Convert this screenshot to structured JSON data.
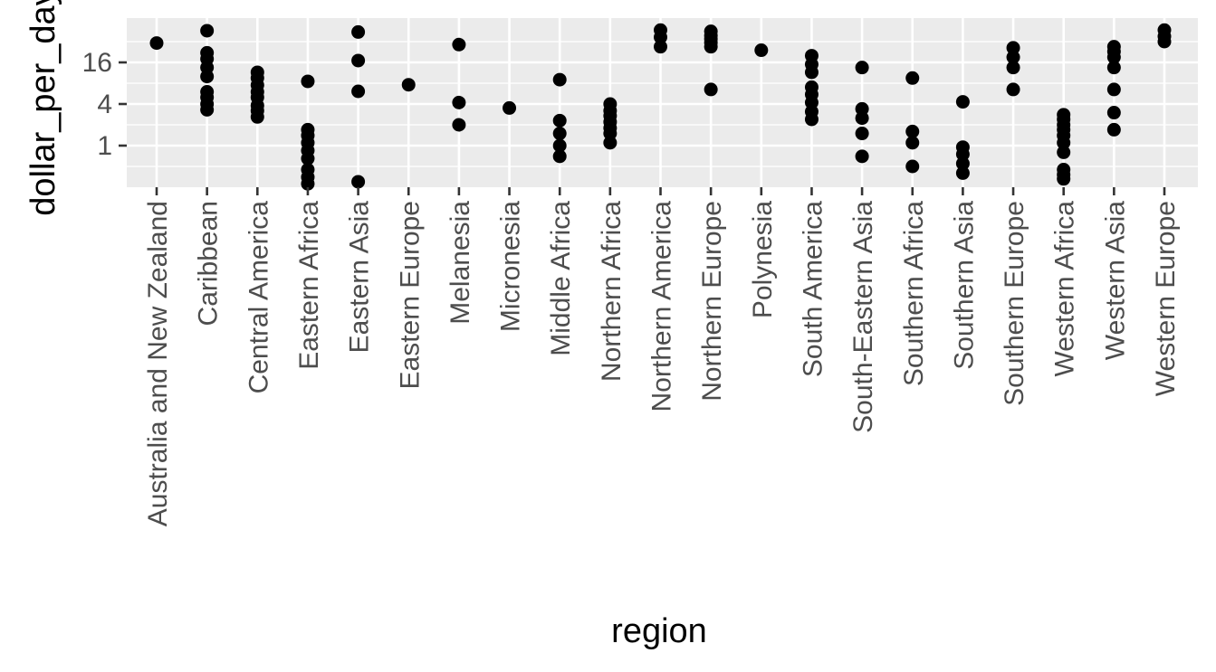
{
  "chart_data": {
    "type": "scatter",
    "xlabel": "region",
    "ylabel": "dollar_per_day",
    "y_scale": "log2",
    "y_ticks": [
      1,
      4,
      16
    ],
    "y_tick_labels": [
      "1",
      "4",
      "16"
    ],
    "ylim": [
      0.12,
      100
    ],
    "grid": true,
    "categories": [
      "Australia and New Zealand",
      "Caribbean",
      "Central America",
      "Eastern Africa",
      "Eastern Asia",
      "Eastern Europe",
      "Melanesia",
      "Micronesia",
      "Middle Africa",
      "Northern Africa",
      "Northern America",
      "Northern Europe",
      "Polynesia",
      "South America",
      "South-Eastern Asia",
      "Southern Africa",
      "Southern Asia",
      "Southern Europe",
      "Western Africa",
      "Western Asia",
      "Western Europe"
    ],
    "points": [
      {
        "category": "Australia and New Zealand",
        "values": [
          30.5
        ]
      },
      {
        "category": "Caribbean",
        "values": [
          46,
          22,
          18,
          13.5,
          10,
          6,
          5,
          4,
          3.3
        ]
      },
      {
        "category": "Central America",
        "values": [
          11.5,
          9.5,
          7.5,
          6,
          5,
          3.8,
          3.2,
          2.6
        ]
      },
      {
        "category": "Eastern Africa",
        "values": [
          8.5,
          1.7,
          1.4,
          1.1,
          0.85,
          0.65,
          0.45,
          0.35,
          0.28
        ]
      },
      {
        "category": "Eastern Asia",
        "values": [
          44,
          17,
          6.1,
          0.3
        ]
      },
      {
        "category": "Eastern Europe",
        "values": [
          7.6
        ]
      },
      {
        "category": "Melanesia",
        "values": [
          29,
          4.2,
          2
        ]
      },
      {
        "category": "Micronesia",
        "values": [
          3.5
        ]
      },
      {
        "category": "Middle Africa",
        "values": [
          9,
          2.3,
          1.5,
          1,
          0.7
        ]
      },
      {
        "category": "Northern Africa",
        "values": [
          4,
          3.2,
          2.7,
          2.2,
          1.8,
          1.5,
          1.1
        ]
      },
      {
        "category": "Northern America",
        "values": [
          47,
          37,
          27
        ]
      },
      {
        "category": "Northern Europe",
        "values": [
          45,
          39,
          35,
          31,
          27,
          6.5
        ]
      },
      {
        "category": "Polynesia",
        "values": [
          24
        ]
      },
      {
        "category": "South America",
        "values": [
          20,
          15,
          11.5,
          7,
          5.5,
          4.2,
          3.1,
          2.4
        ]
      },
      {
        "category": "South-Eastern Asia",
        "values": [
          13.5,
          3.4,
          2.5,
          1.5,
          0.7
        ]
      },
      {
        "category": "Southern Africa",
        "values": [
          9.5,
          1.6,
          1.1,
          0.5
        ]
      },
      {
        "category": "Southern Asia",
        "values": [
          4.3,
          0.95,
          0.75,
          0.55,
          0.4
        ]
      },
      {
        "category": "Southern Europe",
        "values": [
          26,
          19,
          13.5,
          6.5
        ]
      },
      {
        "category": "Western Africa",
        "values": [
          2.8,
          2.4,
          2,
          1.7,
          1.4,
          1.1,
          0.8,
          0.45,
          0.38,
          0.33
        ]
      },
      {
        "category": "Western Asia",
        "values": [
          27,
          23,
          19,
          13.5,
          6.5,
          3,
          1.7
        ]
      },
      {
        "category": "Western Europe",
        "values": [
          47,
          38,
          32
        ]
      }
    ]
  }
}
